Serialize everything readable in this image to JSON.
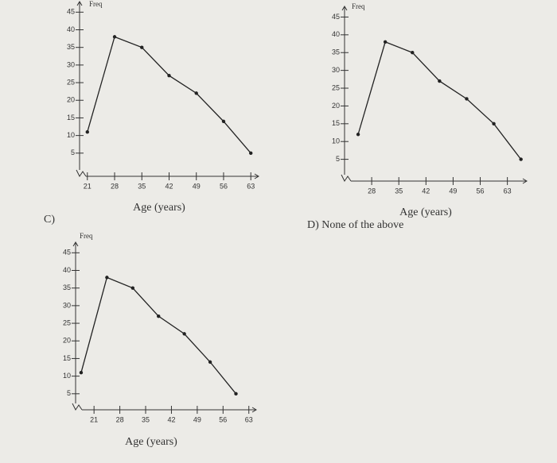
{
  "chart_data": [
    {
      "type": "line",
      "ylabel": "Freq",
      "xlabel": "Age (years)",
      "x": [
        21,
        28,
        35,
        42,
        49,
        56,
        63
      ],
      "values": [
        11,
        38,
        35,
        27,
        22,
        14,
        5
      ],
      "xlim": [
        19,
        65
      ],
      "xticks": [
        21,
        28,
        35,
        42,
        49,
        56,
        63
      ],
      "ylim": [
        0,
        48
      ],
      "yticks": [
        5,
        10,
        15,
        20,
        25,
        30,
        35,
        40,
        45
      ],
      "color": "#222"
    },
    {
      "type": "line",
      "ylabel": "Freq",
      "xlabel": "Age (years)",
      "x": [
        24.5,
        31.5,
        38.5,
        45.5,
        52.5,
        59.5,
        66.5
      ],
      "values": [
        12,
        38,
        35,
        27,
        22,
        15,
        5
      ],
      "xlim": [
        21,
        68
      ],
      "xticks": [
        28,
        35,
        42,
        49,
        56,
        63
      ],
      "ylim": [
        0,
        48
      ],
      "yticks": [
        5,
        10,
        15,
        20,
        25,
        30,
        35,
        40,
        45
      ],
      "color": "#222"
    },
    {
      "type": "line",
      "ylabel": "Freq",
      "xlabel": "Age (years)",
      "x": [
        17.5,
        24.5,
        31.5,
        38.5,
        45.5,
        52.5,
        59.5
      ],
      "values": [
        11,
        38,
        35,
        27,
        22,
        14,
        5
      ],
      "xlim": [
        16,
        65
      ],
      "xticks": [
        21,
        28,
        35,
        42,
        49,
        56,
        63
      ],
      "ylim": [
        0,
        48
      ],
      "yticks": [
        5,
        10,
        15,
        20,
        25,
        30,
        35,
        40,
        45
      ],
      "color": "#222"
    }
  ],
  "options": {
    "c": "C)",
    "d": "D) None of the above"
  }
}
